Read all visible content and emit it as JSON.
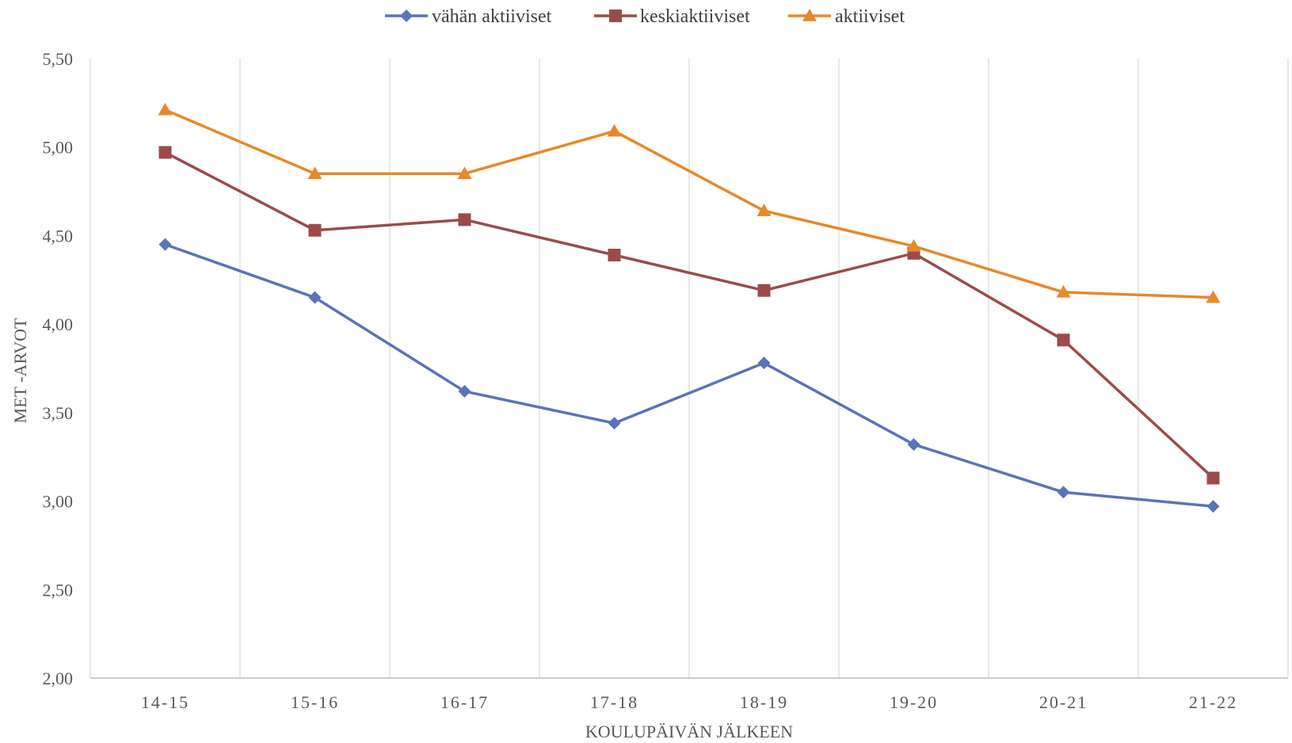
{
  "chart_data": {
    "type": "line",
    "categories": [
      "14-15",
      "15-16",
      "16-17",
      "17-18",
      "18-19",
      "19-20",
      "20-21",
      "21-22"
    ],
    "series": [
      {
        "name": "vähän aktiiviset",
        "color": "#5B73B7",
        "marker": "diamond",
        "values": [
          4.45,
          4.15,
          3.62,
          3.44,
          3.78,
          3.32,
          3.05,
          2.97
        ]
      },
      {
        "name": "keskiaktiiviset",
        "color": "#9C4B4B",
        "marker": "square",
        "values": [
          4.97,
          4.53,
          4.59,
          4.39,
          4.19,
          4.4,
          3.91,
          3.13
        ]
      },
      {
        "name": "aktiiviset",
        "color": "#E6892A",
        "marker": "triangle",
        "values": [
          5.21,
          4.85,
          4.85,
          5.09,
          4.64,
          4.44,
          4.18,
          4.15
        ]
      }
    ],
    "y_ticks": [
      "2,00",
      "2,50",
      "3,00",
      "3,50",
      "4,00",
      "4,50",
      "5,00",
      "5,50"
    ],
    "ylim": [
      2.0,
      5.5
    ],
    "ylabel": "MET -ARVOT",
    "xlabel": "KOULUPÄIVÄN JÄLKEEN",
    "legend_position": "top-center",
    "grid": "vertical",
    "grid_color": "#D9D9D9"
  }
}
